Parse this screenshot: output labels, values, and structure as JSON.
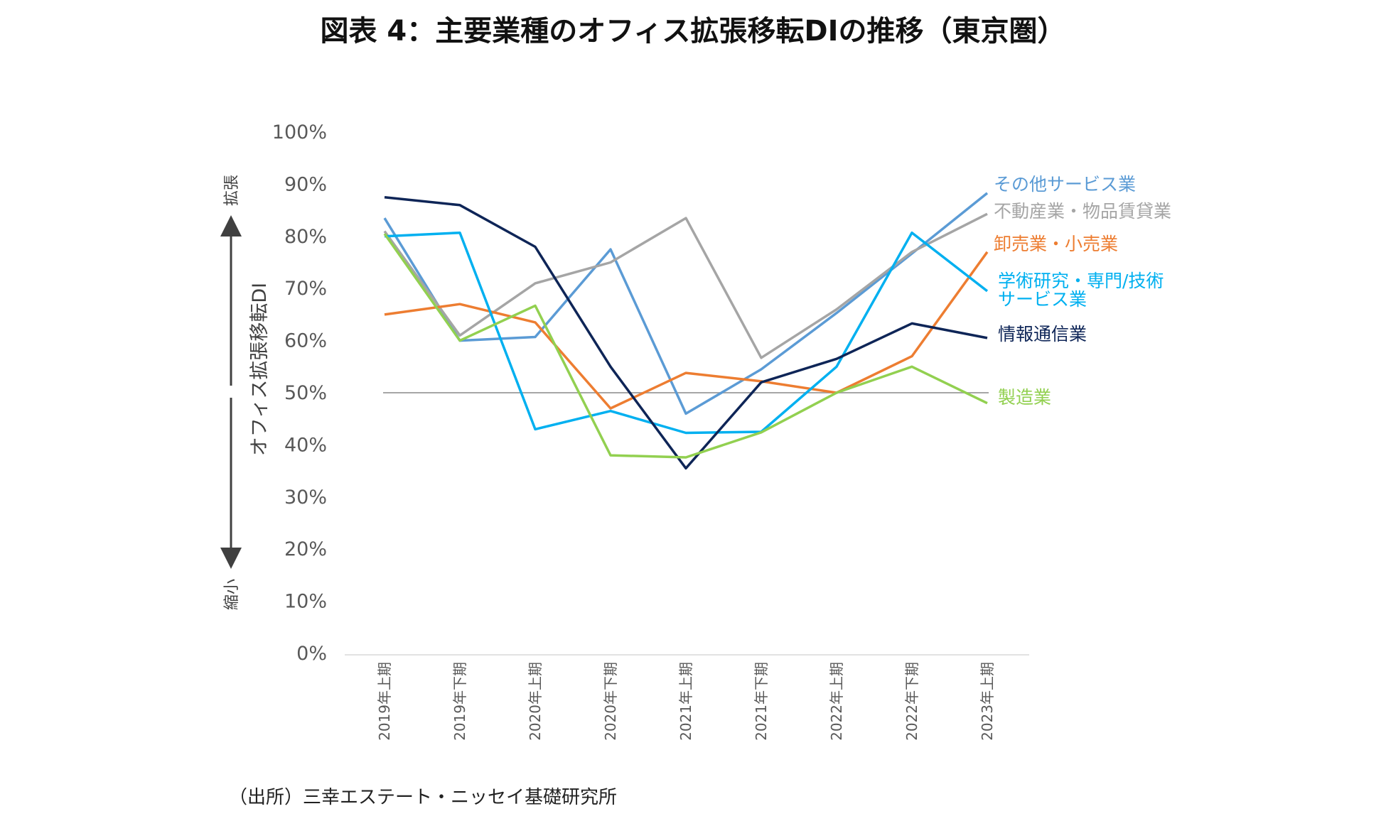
{
  "chart_data": {
    "type": "line",
    "title": "図表 4：主要業種のオフィス拡張移転DIの推移（東京圏）",
    "ylabel": "オフィス拡張移転DI",
    "ylim": [
      0,
      100
    ],
    "ytick_labels": [
      "0%",
      "10%",
      "20%",
      "30%",
      "40%",
      "50%",
      "60%",
      "70%",
      "80%",
      "90%",
      "100%"
    ],
    "reference_line": 50,
    "categories": [
      "2019年上期",
      "2019年下期",
      "2020年上期",
      "2020年下期",
      "2021年上期",
      "2021年下期",
      "2022年上期",
      "2022年下期",
      "2023年上期"
    ],
    "series": [
      {
        "name": "その他サービス業",
        "color": "#5B9BD5",
        "values": [
          83.5,
          60,
          60.7,
          77.5,
          46,
          54.5,
          65.3,
          76.7,
          88.3
        ]
      },
      {
        "name": "不動産業・物品賃貸業",
        "color": "#A5A5A5",
        "values": [
          81,
          61,
          71,
          75,
          83.5,
          56.7,
          66,
          77,
          84.3
        ]
      },
      {
        "name": "卸売業・小売業",
        "color": "#ED7D31",
        "values": [
          65,
          67,
          63.5,
          47,
          53.8,
          52.2,
          50,
          57,
          77
        ]
      },
      {
        "name": "学術研究・専門/技術サービス業",
        "color": "#00B0F0",
        "values": [
          80,
          80.7,
          43,
          46.5,
          42.3,
          42.5,
          55,
          80.7,
          69.5
        ]
      },
      {
        "name": "情報通信業",
        "color": "#0E2557",
        "values": [
          87.5,
          86,
          78,
          55,
          35.5,
          52,
          56.5,
          63.3,
          60.5
        ]
      },
      {
        "name": "製造業",
        "color": "#92D050",
        "values": [
          80.5,
          60,
          66.7,
          38,
          37.6,
          42.4,
          50,
          55,
          48
        ]
      }
    ],
    "legend_lines": [
      [
        "その他サービス業"
      ],
      [
        "不動産業・物品賃貸業"
      ],
      [
        "卸売業・小売業"
      ],
      [
        "学術研究・専門/技術",
        "サービス業"
      ],
      [
        "情報通信業"
      ],
      [
        "製造業"
      ]
    ],
    "side_labels": {
      "up": "拡張",
      "down": "縮小"
    }
  },
  "source": "（出所）三幸エステート・ニッセイ基礎研究所"
}
